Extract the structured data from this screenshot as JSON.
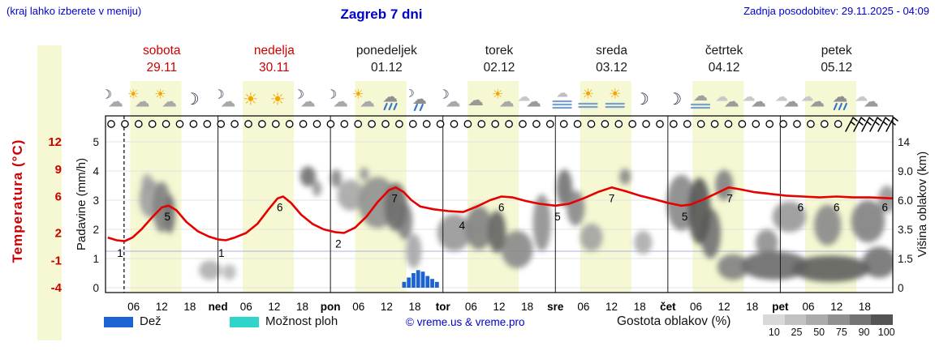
{
  "header": {
    "hint": "(kraj lahko izberete v meniju)",
    "title": "Zagreb 7 dni",
    "updated": "Zadnja posodobitev: 29.11.2025 - 04:09"
  },
  "axes": {
    "temp_title": "Temperatura (°C)",
    "precip_title": "Padavine (mm/h)",
    "cloud_title": "Višina oblakov (km)",
    "temp_labels": [
      12,
      9,
      6,
      2,
      -1,
      -4
    ],
    "precip_labels": [
      5,
      4,
      3,
      2,
      1,
      0
    ],
    "cloud_labels": [
      "14",
      "9.0",
      "6.0",
      "3.5",
      "1.5",
      "0"
    ],
    "temp_color": "#cc0000"
  },
  "days": [
    {
      "name": "sobota",
      "date": "29.11",
      "color": "#cc0000"
    },
    {
      "name": "nedelja",
      "date": "30.11",
      "color": "#cc0000"
    },
    {
      "name": "ponedeljek",
      "date": "01.12",
      "color": "#1a1a1a"
    },
    {
      "name": "torek",
      "date": "02.12",
      "color": "#1a1a1a"
    },
    {
      "name": "sreda",
      "date": "03.12",
      "color": "#1a1a1a"
    },
    {
      "name": "četrtek",
      "date": "04.12",
      "color": "#1a1a1a"
    },
    {
      "name": "petek",
      "date": "05.12",
      "color": "#1a1a1a"
    }
  ],
  "x_ticks": [
    "06",
    "12",
    "18",
    "ned",
    "06",
    "12",
    "18",
    "pon",
    "06",
    "12",
    "18",
    "tor",
    "06",
    "12",
    "18",
    "sre",
    "06",
    "12",
    "18",
    "čet",
    "06",
    "12",
    "18",
    "pet",
    "06",
    "12",
    "18"
  ],
  "legend": {
    "rain_label": "Dež",
    "rain_color": "#1b63d2",
    "showers_label": "Možnost ploh",
    "showers_color": "#2fd5c8",
    "copyright": "© vreme.us & vreme.pro",
    "cloud_density_label": "Gostota oblakov (%)",
    "grayscale_labels": [
      "10",
      "25",
      "50",
      "75",
      "90",
      "100"
    ],
    "grayscale_colors": [
      "#d9d9d9",
      "#c2c2c2",
      "#ababab",
      "#909090",
      "#737373",
      "#545454"
    ]
  },
  "chart_data": {
    "type": "line",
    "title": "Zagreb 7 dni meteogram",
    "temp_axis": {
      "min": -4,
      "max": 12
    },
    "precip_axis": {
      "min": 0,
      "max": 5
    },
    "cloud_axis_km": [
      0,
      1.5,
      3.5,
      6,
      9,
      14
    ],
    "current_time_day": 0.165,
    "daylight": {
      "start_frac": 0.22,
      "end_frac": 0.675,
      "color": "#f5f8d2"
    },
    "temperature": {
      "color": "#e60000",
      "points": [
        [
          0.02,
          1.5
        ],
        [
          0.1,
          1.2
        ],
        [
          0.17,
          1.1
        ],
        [
          0.24,
          1.5
        ],
        [
          0.32,
          2.4
        ],
        [
          0.42,
          3.8
        ],
        [
          0.5,
          4.8
        ],
        [
          0.56,
          5.0
        ],
        [
          0.63,
          4.5
        ],
        [
          0.72,
          3.2
        ],
        [
          0.82,
          2.2
        ],
        [
          0.92,
          1.6
        ],
        [
          1.0,
          1.3
        ],
        [
          1.07,
          1.2
        ],
        [
          1.15,
          1.5
        ],
        [
          1.25,
          2.0
        ],
        [
          1.35,
          3.0
        ],
        [
          1.45,
          4.6
        ],
        [
          1.53,
          5.8
        ],
        [
          1.58,
          6.0
        ],
        [
          1.65,
          5.3
        ],
        [
          1.74,
          4.0
        ],
        [
          1.84,
          3.0
        ],
        [
          1.94,
          2.4
        ],
        [
          2.04,
          2.1
        ],
        [
          2.12,
          2.0
        ],
        [
          2.22,
          2.6
        ],
        [
          2.32,
          3.8
        ],
        [
          2.42,
          5.4
        ],
        [
          2.52,
          6.7
        ],
        [
          2.58,
          7.0
        ],
        [
          2.65,
          6.5
        ],
        [
          2.72,
          5.6
        ],
        [
          2.8,
          4.9
        ],
        [
          2.92,
          4.6
        ],
        [
          3.05,
          4.4
        ],
        [
          3.18,
          4.3
        ],
        [
          3.3,
          4.9
        ],
        [
          3.42,
          5.6
        ],
        [
          3.52,
          6.0
        ],
        [
          3.62,
          5.9
        ],
        [
          3.74,
          5.5
        ],
        [
          3.86,
          5.2
        ],
        [
          4.0,
          5.0
        ],
        [
          4.12,
          5.2
        ],
        [
          4.25,
          5.8
        ],
        [
          4.38,
          6.5
        ],
        [
          4.5,
          7.0
        ],
        [
          4.62,
          6.6
        ],
        [
          4.75,
          6.1
        ],
        [
          4.88,
          5.7
        ],
        [
          5.0,
          5.3
        ],
        [
          5.12,
          5.0
        ],
        [
          5.2,
          5.1
        ],
        [
          5.32,
          5.7
        ],
        [
          5.44,
          6.4
        ],
        [
          5.54,
          7.0
        ],
        [
          5.64,
          6.8
        ],
        [
          5.76,
          6.5
        ],
        [
          5.9,
          6.3
        ],
        [
          6.05,
          6.1
        ],
        [
          6.2,
          6.0
        ],
        [
          6.35,
          5.9
        ],
        [
          6.5,
          6.0
        ],
        [
          6.65,
          5.9
        ],
        [
          6.8,
          5.9
        ],
        [
          7.0,
          5.8
        ]
      ],
      "labels": [
        [
          0.13,
          1
        ],
        [
          0.55,
          5
        ],
        [
          1.03,
          1
        ],
        [
          1.55,
          6
        ],
        [
          2.07,
          2
        ],
        [
          2.57,
          7
        ],
        [
          3.17,
          4
        ],
        [
          3.52,
          6
        ],
        [
          4.02,
          5
        ],
        [
          4.5,
          7
        ],
        [
          5.15,
          5
        ],
        [
          5.55,
          7
        ],
        [
          6.18,
          6
        ],
        [
          6.5,
          6
        ],
        [
          6.93,
          6
        ]
      ]
    },
    "rain": {
      "start_day": 2.655,
      "values": [
        0.2,
        0.35,
        0.5,
        0.6,
        0.55,
        0.4,
        0.3,
        0.2
      ],
      "color": "#1b63d2"
    },
    "clouds": [
      [
        0.4,
        6.3,
        0.1,
        1.8,
        40
      ],
      [
        0.5,
        5.6,
        0.08,
        2.3,
        60
      ],
      [
        0.57,
        4.9,
        0.05,
        1.7,
        70
      ],
      [
        0.37,
        7.7,
        0.05,
        1.0,
        35
      ],
      [
        0.93,
        0.9,
        0.1,
        0.5,
        30
      ],
      [
        1.1,
        0.8,
        0.06,
        0.4,
        25
      ],
      [
        1.8,
        8.6,
        0.07,
        1.2,
        70
      ],
      [
        1.88,
        7.2,
        0.04,
        0.8,
        45
      ],
      [
        2.05,
        8.3,
        0.05,
        1.0,
        55
      ],
      [
        2.3,
        8.8,
        0.04,
        0.8,
        45
      ],
      [
        2.18,
        6.6,
        0.12,
        1.5,
        35
      ],
      [
        2.42,
        6.0,
        0.17,
        2.4,
        50
      ],
      [
        2.58,
        5.6,
        0.1,
        2.2,
        72
      ],
      [
        2.66,
        4.3,
        0.07,
        1.5,
        60
      ],
      [
        2.74,
        2.1,
        0.07,
        1.1,
        35
      ],
      [
        3.1,
        3.4,
        0.15,
        1.4,
        45
      ],
      [
        3.32,
        3.8,
        0.12,
        1.7,
        60
      ],
      [
        3.48,
        3.5,
        0.08,
        1.6,
        78
      ],
      [
        3.66,
        2.2,
        0.14,
        1.2,
        55
      ],
      [
        3.88,
        4.3,
        0.08,
        2.3,
        50
      ],
      [
        4.08,
        7.4,
        0.07,
        1.9,
        68
      ],
      [
        4.18,
        5.4,
        0.08,
        1.6,
        55
      ],
      [
        4.32,
        3.0,
        0.1,
        1.0,
        38
      ],
      [
        4.62,
        8.5,
        0.05,
        0.9,
        55
      ],
      [
        4.78,
        2.6,
        0.08,
        0.8,
        33
      ],
      [
        5.12,
        6.0,
        0.13,
        2.6,
        55
      ],
      [
        5.28,
        5.4,
        0.1,
        2.9,
        85
      ],
      [
        5.38,
        3.4,
        0.09,
        1.9,
        70
      ],
      [
        5.5,
        7.6,
        0.08,
        1.6,
        60
      ],
      [
        5.58,
        1.1,
        0.14,
        0.7,
        60
      ],
      [
        5.88,
        2.6,
        0.1,
        0.9,
        50
      ],
      [
        5.95,
        1.2,
        0.3,
        0.8,
        72
      ],
      [
        6.45,
        1.0,
        0.35,
        0.7,
        80
      ],
      [
        6.88,
        1.4,
        0.15,
        0.9,
        68
      ],
      [
        6.08,
        4.6,
        0.15,
        1.3,
        45
      ],
      [
        6.42,
        4.0,
        0.12,
        1.6,
        55
      ],
      [
        6.78,
        4.3,
        0.15,
        1.7,
        60
      ],
      [
        6.95,
        6.2,
        0.08,
        1.3,
        45
      ]
    ],
    "icons": [
      "moon-cloud",
      "sun-cloud",
      "sun-cloud",
      "moon",
      "moon-cloud",
      "sun",
      "sun",
      "moon-cloud",
      "moon-cloud",
      "sun-cloud",
      "cloud-drizzle",
      "cloud-drizzle-moon",
      "moon-cloud",
      "cloud",
      "sun-cloud",
      "clouds",
      "fog",
      "sun-fog",
      "sun-fog",
      "moon",
      "moon",
      "cloud-fog",
      "clouds",
      "clouds",
      "clouds",
      "clouds",
      "cloud-drizzle",
      "clouds"
    ],
    "moon_circles_count": 54,
    "wind_barbs_count": 6
  }
}
